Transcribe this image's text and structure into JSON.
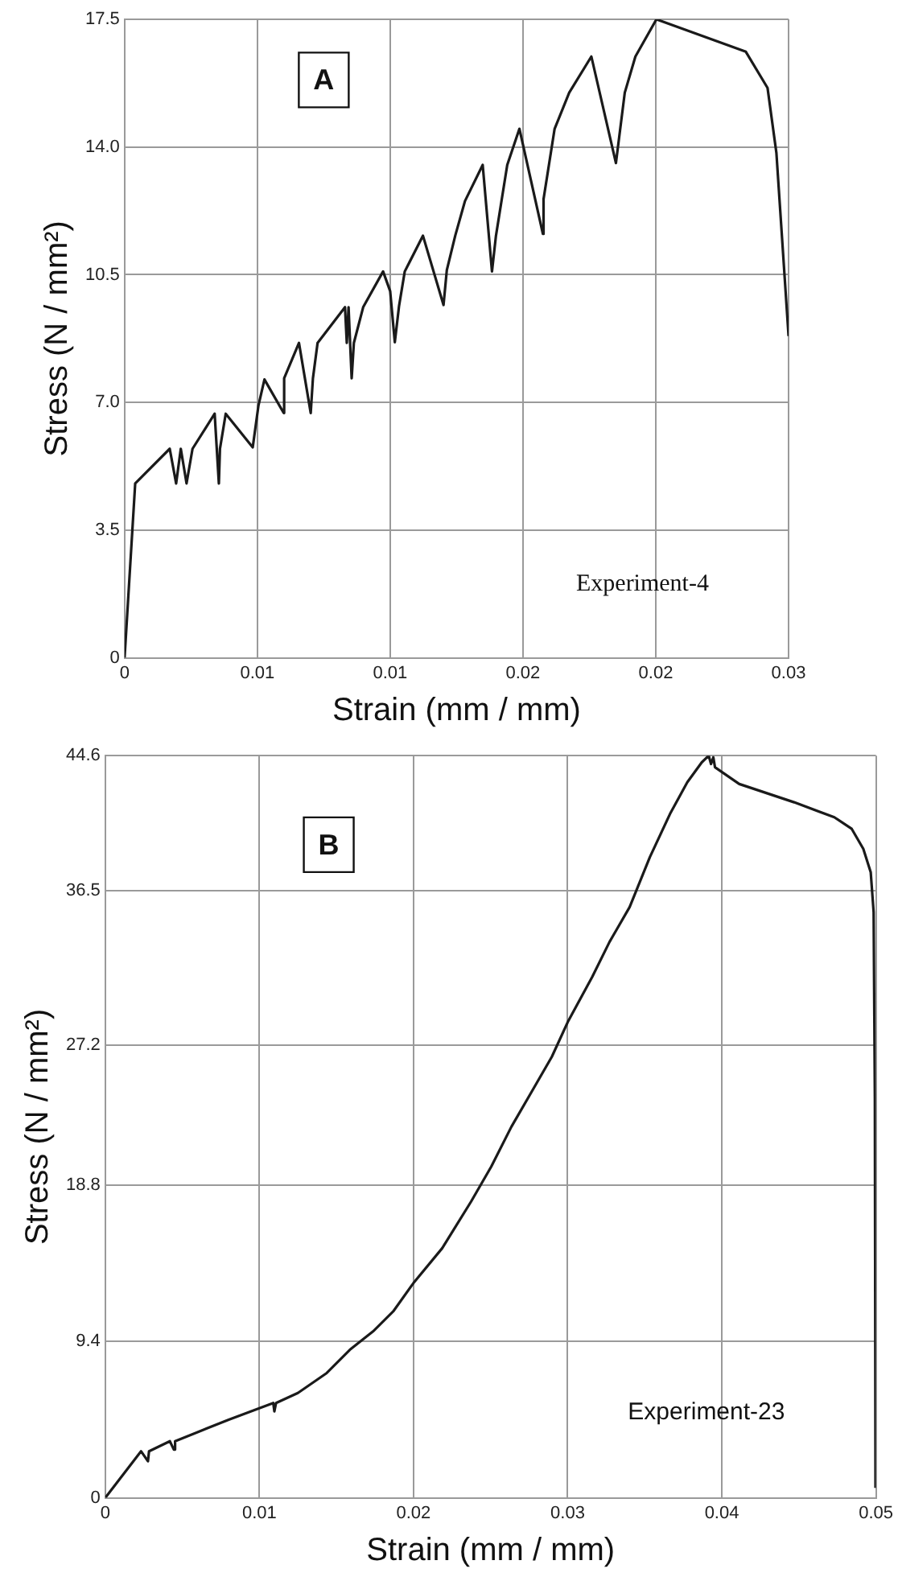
{
  "chart_data": [
    {
      "type": "line",
      "xlabel": "Strain (mm / mm)",
      "ylabel": "Stress (N / mm²)",
      "annotations": [
        "A",
        "Experiment-4"
      ],
      "xlim": [
        0,
        0.03
      ],
      "xticks": [
        0,
        {
          "value": 0.006,
          "label": "0.01"
        },
        {
          "value": 0.012,
          "label": "0.01"
        },
        {
          "value": 0.018,
          "label": "0.02"
        },
        {
          "value": 0.024,
          "label": "0.02"
        },
        0.03
      ],
      "ylim": [
        0,
        17.5
      ],
      "yticks": [
        0,
        3.5,
        {
          "value": 7,
          "label": "7.0"
        },
        10.5,
        {
          "value": 14,
          "label": "14.0"
        },
        17.5
      ],
      "grid": true,
      "marker": "none",
      "line_style": "solid",
      "series": [
        {
          "color": "#1a1a1a",
          "x": [
            0,
            0.00048,
            0.00204,
            0.00233,
            0.00254,
            0.0028,
            0.00307,
            0.00407,
            0.00426,
            0.00431,
            0.00457,
            0.00579,
            0.00605,
            0.00632,
            0.00719,
            0.00721,
            0.00788,
            0.00841,
            0.00851,
            0.00872,
            0.00996,
            0.01004,
            0.01012,
            0.01026,
            0.01036,
            0.01078,
            0.01168,
            0.012,
            0.01221,
            0.0124,
            0.01266,
            0.01348,
            0.01441,
            0.01456,
            0.01494,
            0.01538,
            0.01618,
            0.0166,
            0.01678,
            0.01729,
            0.01784,
            0.0189,
            0.01893,
            0.01943,
            0.02009,
            0.02109,
            0.0222,
            0.0226,
            0.02308,
            0.02403,
            0.02807,
            0.02905,
            0.02945,
            0.03
          ],
          "values": [
            0,
            4.78,
            5.73,
            4.78,
            5.73,
            4.78,
            5.73,
            6.69,
            4.78,
            5.73,
            6.69,
            5.77,
            6.92,
            7.63,
            6.71,
            7.66,
            8.63,
            6.71,
            7.66,
            8.63,
            9.61,
            8.63,
            9.61,
            7.66,
            8.63,
            9.61,
            10.59,
            10.05,
            8.65,
            9.64,
            10.59,
            11.57,
            9.67,
            10.63,
            11.57,
            12.52,
            13.51,
            10.59,
            11.57,
            13.51,
            14.5,
            11.62,
            12.57,
            14.5,
            15.49,
            16.48,
            13.56,
            15.49,
            16.48,
            17.5,
            16.61,
            15.62,
            13.84,
            8.82
          ]
        }
      ]
    },
    {
      "type": "line",
      "xlabel": "Strain (mm / mm)",
      "ylabel": "Stress (N / mm²)",
      "annotations": [
        "B",
        "Experiment-23"
      ],
      "xlim": [
        0,
        0.05
      ],
      "xticks": [
        0,
        0.01,
        0.02,
        0.03,
        0.04,
        0.05
      ],
      "ylim": [
        0,
        44.6
      ],
      "yticks": [
        0,
        9.4,
        18.8,
        27.2,
        36.5,
        44.6
      ],
      "grid": true,
      "marker": "none",
      "line_style": "solid",
      "series": [
        {
          "color": "#1a1a1a",
          "x": [
            0,
            0.00232,
            0.00277,
            0.00284,
            0.00419,
            0.00445,
            0.00453,
            0.00801,
            0.0109,
            0.01097,
            0.01108,
            0.0125,
            0.01437,
            0.01587,
            0.01737,
            0.01868,
            0.01999,
            0.02186,
            0.02373,
            0.02504,
            0.02635,
            0.02766,
            0.02897,
            0.03001,
            0.03159,
            0.03271,
            0.03402,
            0.03533,
            0.03664,
            0.03776,
            0.0387,
            0.03915,
            0.0393,
            0.03945,
            0.03956,
            0.04113,
            0.04469,
            0.0473,
            0.04843,
            0.04918,
            0.04966,
            0.04985,
            0.04993,
            0.04997
          ],
          "values": [
            0,
            2.8,
            2.2,
            2.8,
            3.4,
            2.9,
            3.4,
            4.7,
            5.7,
            5.2,
            5.7,
            6.3,
            7.5,
            8.9,
            10.0,
            11.2,
            12.9,
            15.0,
            17.8,
            19.9,
            22.3,
            24.4,
            26.5,
            28.6,
            31.3,
            33.4,
            35.5,
            38.5,
            41.1,
            43.0,
            44.2,
            44.6,
            44.1,
            44.5,
            43.9,
            42.9,
            41.8,
            40.9,
            40.2,
            39.0,
            37.6,
            35.2,
            24.0,
            0.6
          ]
        }
      ]
    }
  ]
}
